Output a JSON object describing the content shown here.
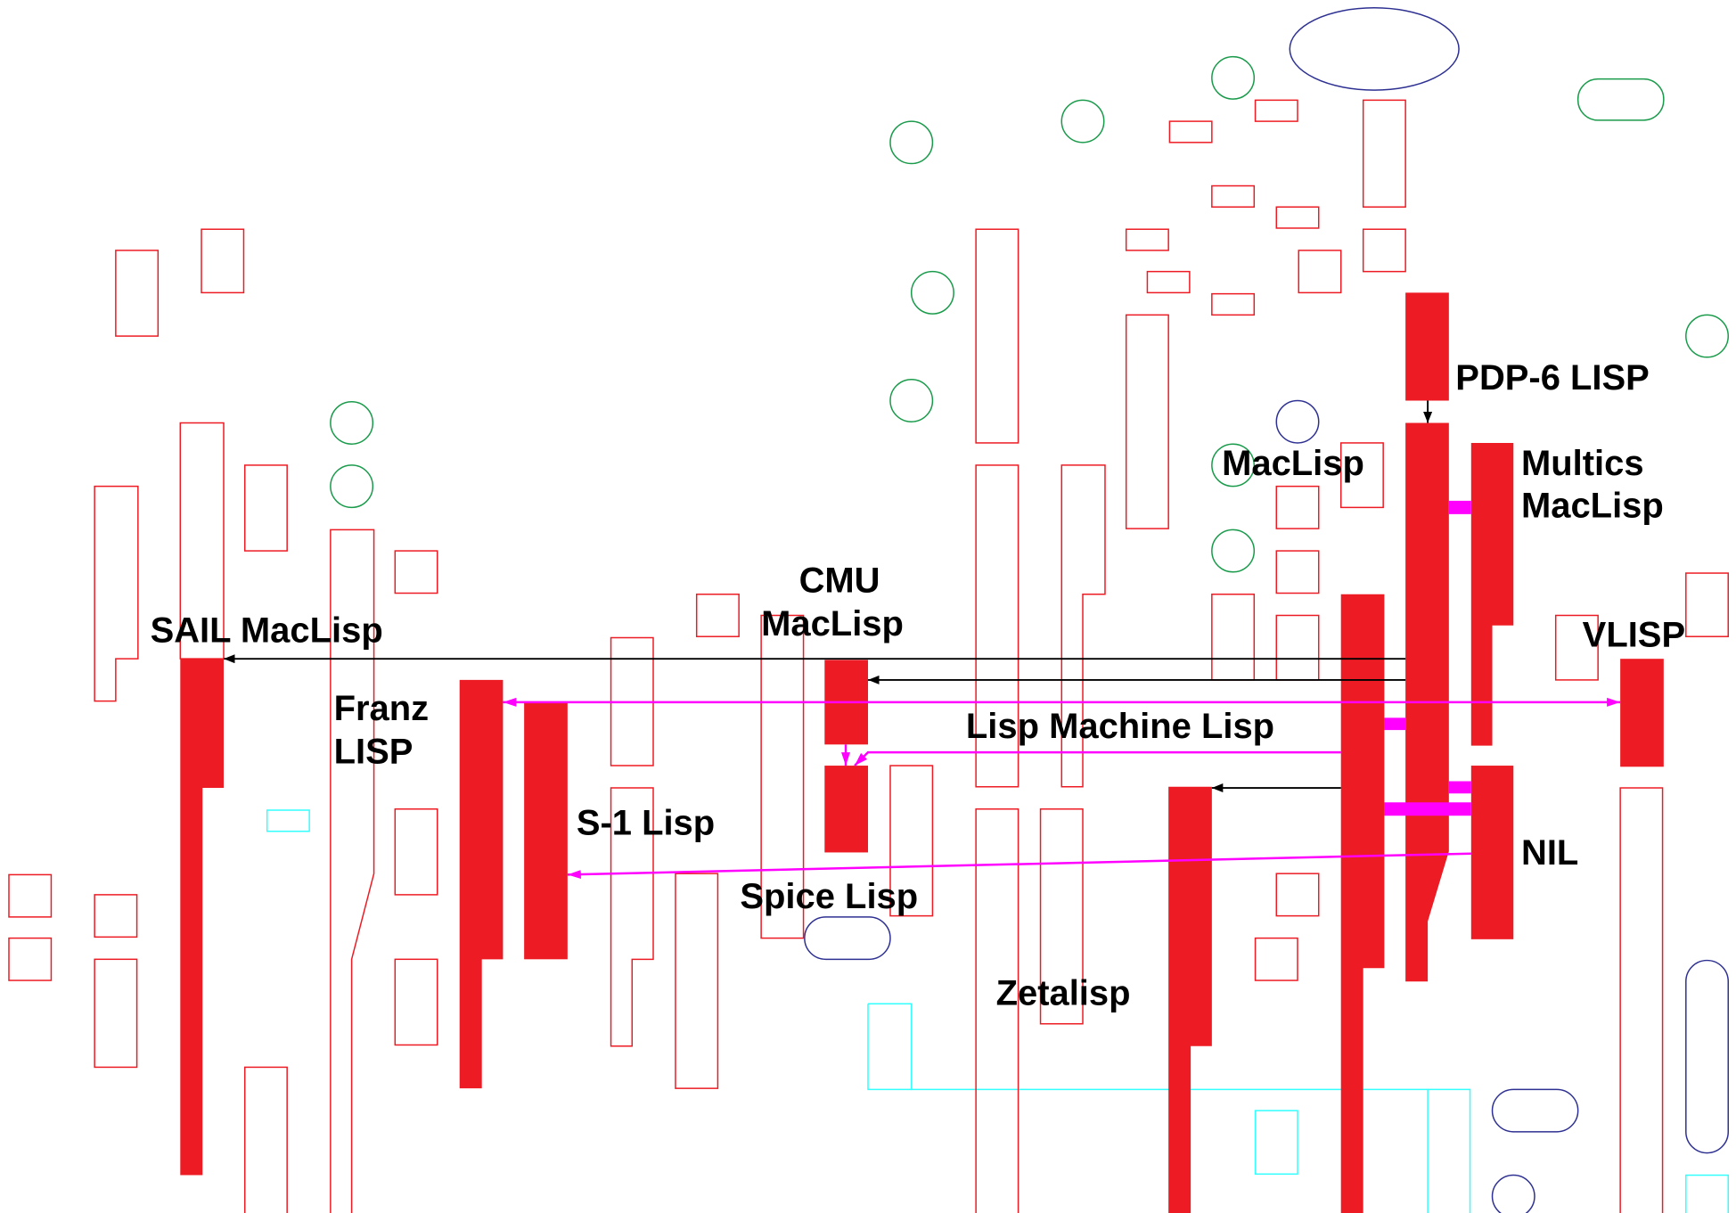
{
  "nodes": [
    {
      "lines": [
        "PDP-6 LISP"
      ]
    },
    {
      "lines": [
        "MacLisp"
      ]
    },
    {
      "lines": [
        "Multics",
        "MacLisp"
      ]
    },
    {
      "lines": [
        "CMU",
        "MacLisp"
      ]
    },
    {
      "lines": [
        "SAIL MacLisp"
      ]
    },
    {
      "lines": [
        "VLISP"
      ]
    },
    {
      "lines": [
        "Franz",
        "LISP"
      ]
    },
    {
      "lines": [
        "Lisp Machine Lisp"
      ]
    },
    {
      "lines": [
        "S-1 Lisp"
      ]
    },
    {
      "lines": [
        "NIL"
      ]
    },
    {
      "lines": [
        "Spice Lisp"
      ]
    },
    {
      "lines": [
        "Zetalisp"
      ]
    }
  ]
}
